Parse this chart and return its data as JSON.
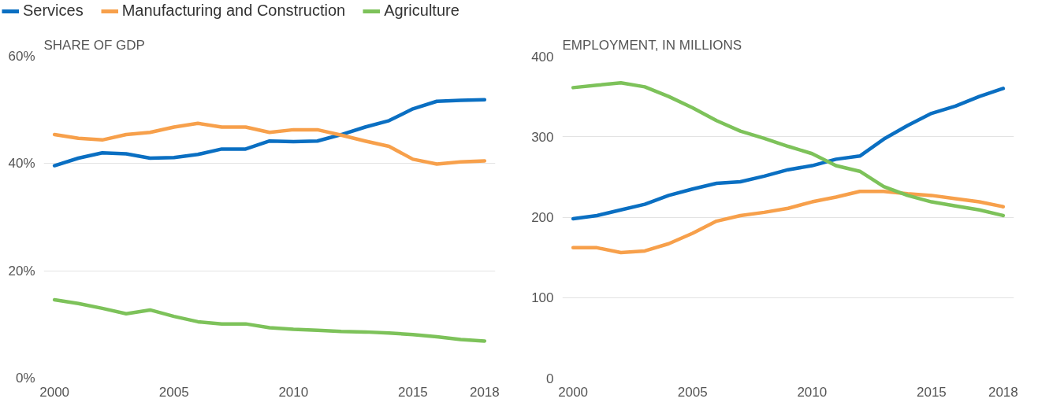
{
  "chart_data": [
    {
      "type": "line",
      "title": "SHARE OF GDP",
      "x": [
        2000,
        2001,
        2002,
        2003,
        2004,
        2005,
        2006,
        2007,
        2008,
        2009,
        2010,
        2011,
        2012,
        2013,
        2014,
        2015,
        2016,
        2017,
        2018
      ],
      "xlim": [
        1999.55,
        2018.45
      ],
      "xticks": [
        2000,
        2005,
        2010,
        2015,
        2018
      ],
      "ylim": [
        0,
        60
      ],
      "yticks": [
        {
          "value": 0,
          "label": "0%"
        },
        {
          "value": 20,
          "label": "20%"
        },
        {
          "value": 40,
          "label": "40%"
        },
        {
          "value": 60,
          "label": "60%"
        }
      ],
      "grid": "y",
      "legend": "top left",
      "line_style": "solid",
      "series": [
        {
          "name": "Services",
          "color": "#0a6fc2",
          "values": [
            39.6,
            41.0,
            42.0,
            41.8,
            41.0,
            41.1,
            41.7,
            42.7,
            42.7,
            44.2,
            44.1,
            44.2,
            45.4,
            46.8,
            48.0,
            50.2,
            51.6,
            51.8,
            51.9
          ]
        },
        {
          "name": "Manufacturing and Construction",
          "color": "#f7a04b",
          "values": [
            45.4,
            44.7,
            44.4,
            45.4,
            45.8,
            46.8,
            47.5,
            46.8,
            46.8,
            45.8,
            46.3,
            46.3,
            45.3,
            44.2,
            43.2,
            40.8,
            39.9,
            40.3,
            40.5
          ]
        },
        {
          "name": "Agriculture",
          "color": "#7dc25a",
          "values": [
            14.6,
            13.9,
            13.0,
            12.0,
            12.7,
            11.5,
            10.5,
            10.1,
            10.1,
            9.4,
            9.1,
            8.9,
            8.7,
            8.6,
            8.4,
            8.1,
            7.7,
            7.2,
            6.9
          ]
        }
      ]
    },
    {
      "type": "line",
      "title": "EMPLOYMENT, IN MILLIONS",
      "x": [
        2000,
        2001,
        2002,
        2003,
        2004,
        2005,
        2006,
        2007,
        2008,
        2009,
        2010,
        2011,
        2012,
        2013,
        2014,
        2015,
        2016,
        2017,
        2018
      ],
      "xlim": [
        1999.55,
        2018.45
      ],
      "xticks": [
        2000,
        2005,
        2010,
        2015,
        2018
      ],
      "ylim": [
        0,
        400
      ],
      "yticks": [
        0,
        100,
        200,
        300,
        400
      ],
      "grid": "y",
      "line_style": "solid",
      "series": [
        {
          "color": "#0a6fc2",
          "values": [
            198,
            202,
            209,
            216,
            227,
            235,
            242,
            244,
            251,
            259,
            264,
            272,
            276,
            297,
            314,
            329,
            338,
            350,
            360
          ]
        },
        {
          "color": "#f7a04b",
          "values": [
            162,
            162,
            156,
            158,
            167,
            180,
            195,
            202,
            206,
            211,
            219,
            225,
            232,
            232,
            229,
            227,
            223,
            219,
            213
          ]
        },
        {
          "color": "#7dc25a",
          "values": [
            361,
            364,
            367,
            362,
            350,
            336,
            320,
            307,
            298,
            288,
            279,
            264,
            257,
            238,
            227,
            219,
            214,
            209,
            202
          ]
        }
      ]
    }
  ]
}
